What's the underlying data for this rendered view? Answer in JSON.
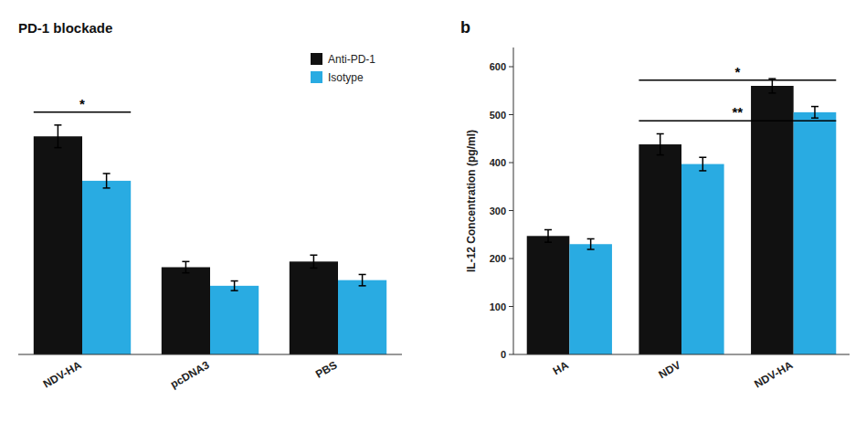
{
  "chart_data": [
    {
      "type": "bar",
      "title": "PD-1 blockade",
      "categories": [
        "NDV-HA",
        "pcDNA3",
        "PBS"
      ],
      "series": [
        {
          "name": "Anti-PD-1",
          "color": "#111111",
          "values": [
            270,
            108,
            115
          ],
          "errors": [
            14,
            7,
            8
          ]
        },
        {
          "name": "Isotype",
          "color": "#29ABE2",
          "values": [
            215,
            85,
            92
          ],
          "errors": [
            9,
            6,
            7
          ]
        }
      ],
      "ylim": [
        0,
        380
      ],
      "tick_labels": "x",
      "grid": false,
      "legend": "upper right",
      "annotations": [
        {
          "text": "*",
          "y": 300,
          "start": "NDV-HA",
          "end": "NDV-HA"
        }
      ]
    },
    {
      "type": "bar",
      "panel_label": "b",
      "y_label": "IL-12 Concentration (pg/ml)",
      "categories": [
        "HA",
        "NDV",
        "NDV-HA"
      ],
      "series": [
        {
          "color": "#111111",
          "values": [
            247,
            438,
            560
          ],
          "errors": [
            13,
            22,
            15
          ]
        },
        {
          "color": "#29ABE2",
          "values": [
            230,
            397,
            505
          ],
          "errors": [
            11,
            14,
            12
          ]
        }
      ],
      "ylim": [
        0,
        640
      ],
      "yticks": [
        0,
        100,
        200,
        300,
        400,
        500,
        600
      ],
      "grid": false,
      "annotations": [
        {
          "text": "**",
          "y": 487,
          "start": "NDV",
          "end": "NDV-HA"
        },
        {
          "text": "*",
          "y": 572,
          "start": "NDV",
          "end": "NDV-HA"
        }
      ]
    }
  ]
}
